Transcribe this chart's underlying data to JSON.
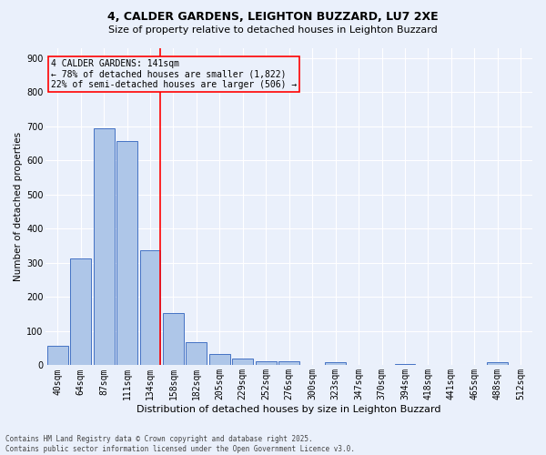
{
  "title_line1": "4, CALDER GARDENS, LEIGHTON BUZZARD, LU7 2XE",
  "title_line2": "Size of property relative to detached houses in Leighton Buzzard",
  "xlabel": "Distribution of detached houses by size in Leighton Buzzard",
  "ylabel": "Number of detached properties",
  "footnote": "Contains HM Land Registry data © Crown copyright and database right 2025.\nContains public sector information licensed under the Open Government Licence v3.0.",
  "categories": [
    "40sqm",
    "64sqm",
    "87sqm",
    "111sqm",
    "134sqm",
    "158sqm",
    "182sqm",
    "205sqm",
    "229sqm",
    "252sqm",
    "276sqm",
    "300sqm",
    "323sqm",
    "347sqm",
    "370sqm",
    "394sqm",
    "418sqm",
    "441sqm",
    "465sqm",
    "488sqm",
    "512sqm"
  ],
  "values": [
    58,
    312,
    693,
    657,
    338,
    152,
    67,
    33,
    20,
    12,
    12,
    0,
    10,
    0,
    0,
    5,
    0,
    0,
    0,
    8,
    0
  ],
  "bar_color": "#aec6e8",
  "bar_edge_color": "#4472c4",
  "background_color": "#eaf0fb",
  "grid_color": "#ffffff",
  "vline_color": "red",
  "annotation_text": "4 CALDER GARDENS: 141sqm\n← 78% of detached houses are smaller (1,822)\n22% of semi-detached houses are larger (506) →",
  "annotation_box_color": "red",
  "ylim": [
    0,
    930
  ],
  "yticks": [
    0,
    100,
    200,
    300,
    400,
    500,
    600,
    700,
    800,
    900
  ],
  "title1_fontsize": 9,
  "title2_fontsize": 8,
  "xlabel_fontsize": 8,
  "ylabel_fontsize": 7.5,
  "tick_fontsize": 7,
  "annot_fontsize": 7,
  "footnote_fontsize": 5.5
}
